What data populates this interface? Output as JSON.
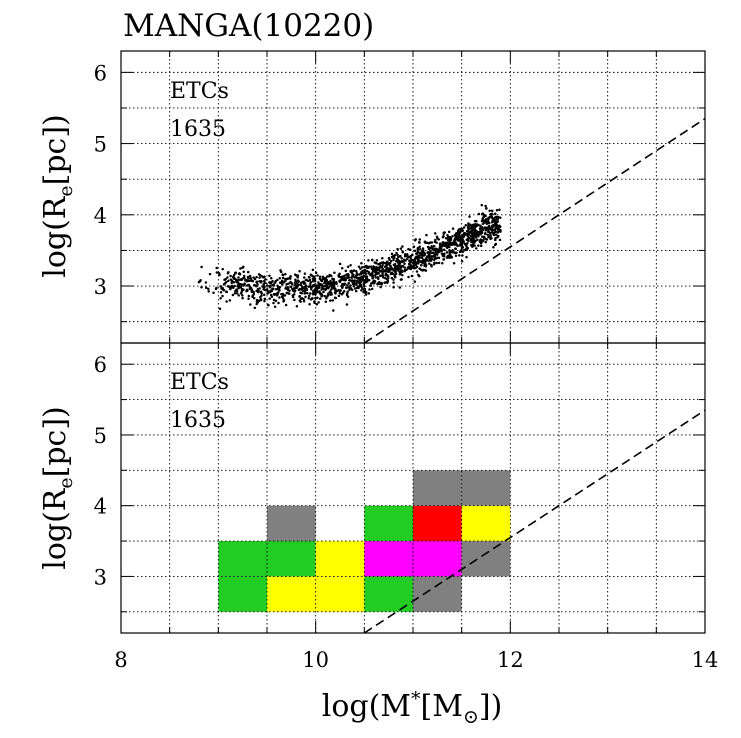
{
  "chart_data": {
    "type": "scatter+heatmap",
    "title": "MANGA(10220)",
    "xlabel_parts": {
      "pre": "log(M",
      "sup": "*",
      "mid": "[M",
      "sub": "⊙",
      "post": "])"
    },
    "ylabel_parts": {
      "pre": "log(R",
      "sub": "e",
      "post": "[pc])"
    },
    "xlim": [
      8,
      14
    ],
    "x_ticks": [
      8,
      10,
      12,
      14
    ],
    "x_tick_labels": [
      "8",
      "10",
      "12",
      "14"
    ],
    "panels": [
      {
        "name": "top",
        "type": "scatter",
        "ylim": [
          2.2,
          6.3
        ],
        "y_ticks": [
          3,
          4,
          5,
          6
        ],
        "y_tick_labels": [
          "3",
          "4",
          "5",
          "6"
        ],
        "annotation": "ETCs",
        "count_label": "1635",
        "dashed_line": {
          "x": [
            10.5,
            14
          ],
          "y": [
            2.2,
            5.35
          ]
        },
        "scatter_description": "1635 early-type galaxies; size-mass relation rising from about 3.0 at log M* ~ 9.5 to about 3.8 at log M* ~ 11.7",
        "scatter_trend": {
          "x": [
            8.8,
            9.5,
            10.2,
            10.6,
            11.0,
            11.4,
            11.8
          ],
          "y": [
            3.1,
            2.95,
            3.0,
            3.15,
            3.35,
            3.6,
            3.85
          ]
        }
      },
      {
        "name": "bottom",
        "type": "heatmap",
        "ylim": [
          2.2,
          6.3
        ],
        "y_ticks": [
          3,
          4,
          5,
          6
        ],
        "y_tick_labels": [
          "3",
          "4",
          "5",
          "6"
        ],
        "annotation": "ETCs",
        "count_label": "1635",
        "dashed_line": {
          "x": [
            10.5,
            14
          ],
          "y": [
            2.2,
            5.35
          ]
        },
        "cell_width": 0.5,
        "cell_height": 0.5,
        "cells": [
          {
            "x": 9.0,
            "y": 2.5,
            "color": "#22cc22"
          },
          {
            "x": 9.0,
            "y": 3.0,
            "color": "#22cc22"
          },
          {
            "x": 9.5,
            "y": 2.5,
            "color": "#ffff00"
          },
          {
            "x": 9.5,
            "y": 3.0,
            "color": "#22cc22"
          },
          {
            "x": 9.5,
            "y": 3.5,
            "color": "#808080"
          },
          {
            "x": 10.0,
            "y": 2.5,
            "color": "#ffff00"
          },
          {
            "x": 10.0,
            "y": 3.0,
            "color": "#ffff00"
          },
          {
            "x": 10.5,
            "y": 2.5,
            "color": "#22cc22"
          },
          {
            "x": 10.5,
            "y": 3.0,
            "color": "#ff00ff"
          },
          {
            "x": 10.5,
            "y": 3.5,
            "color": "#22cc22"
          },
          {
            "x": 11.0,
            "y": 2.5,
            "color": "#808080"
          },
          {
            "x": 11.0,
            "y": 3.0,
            "color": "#ff00ff"
          },
          {
            "x": 11.0,
            "y": 3.5,
            "color": "#ff0000"
          },
          {
            "x": 11.0,
            "y": 4.0,
            "color": "#808080"
          },
          {
            "x": 11.5,
            "y": 3.0,
            "color": "#808080"
          },
          {
            "x": 11.5,
            "y": 3.5,
            "color": "#ffff00"
          },
          {
            "x": 11.5,
            "y": 4.0,
            "color": "#808080"
          }
        ]
      }
    ]
  }
}
